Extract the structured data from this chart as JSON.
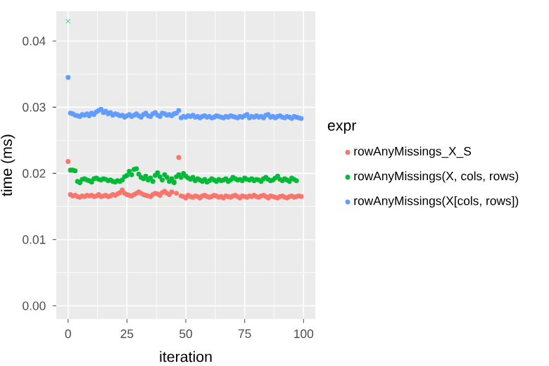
{
  "chart_data": {
    "type": "scatter",
    "xlabel": "iteration",
    "ylabel": "time (ms)",
    "legend_title": "expr",
    "x": [
      0,
      1,
      2,
      3,
      4,
      5,
      6,
      7,
      8,
      9,
      10,
      11,
      12,
      13,
      14,
      15,
      16,
      17,
      18,
      19,
      20,
      21,
      22,
      23,
      24,
      25,
      26,
      27,
      28,
      29,
      30,
      31,
      32,
      33,
      34,
      35,
      36,
      37,
      38,
      39,
      40,
      41,
      42,
      43,
      44,
      45,
      46,
      47,
      48,
      49,
      50,
      51,
      52,
      53,
      54,
      55,
      56,
      57,
      58,
      59,
      60,
      61,
      62,
      63,
      64,
      65,
      66,
      67,
      68,
      69,
      70,
      71,
      72,
      73,
      74,
      75,
      76,
      77,
      78,
      79,
      80,
      81,
      82,
      83,
      84,
      85,
      86,
      87,
      88,
      89,
      90,
      91,
      92,
      93,
      94,
      95,
      96,
      97,
      98,
      99
    ],
    "series": [
      {
        "name": "rowAnyMissings_X_S",
        "color": "#f8766d",
        "values": [
          0.0218,
          0.0168,
          0.0166,
          0.0167,
          0.0165,
          0.0164,
          0.0166,
          0.0165,
          0.0167,
          0.0166,
          0.0167,
          0.0165,
          0.0166,
          0.0168,
          0.0165,
          0.0166,
          0.0167,
          0.0165,
          0.0166,
          0.0168,
          0.0167,
          0.0169,
          0.0171,
          0.0175,
          0.017,
          0.0168,
          0.0167,
          0.0166,
          0.0168,
          0.017,
          0.0172,
          0.017,
          0.0168,
          0.0167,
          0.0166,
          0.0165,
          0.0168,
          0.017,
          0.0169,
          0.0167,
          0.0171,
          0.0173,
          0.017,
          0.0168,
          0.0172,
          0.0188,
          0.017,
          0.0224,
          0.0166,
          0.0165,
          0.0163,
          0.0167,
          0.0165,
          0.0164,
          0.0166,
          0.0165,
          0.0163,
          0.0166,
          0.0167,
          0.0165,
          0.0164,
          0.0165,
          0.0167,
          0.0166,
          0.0164,
          0.0165,
          0.0163,
          0.0166,
          0.0165,
          0.0164,
          0.0166,
          0.0167,
          0.0165,
          0.0163,
          0.0166,
          0.0165,
          0.0164,
          0.0166,
          0.0165,
          0.0167,
          0.0165,
          0.0164,
          0.0166,
          0.0167,
          0.0165,
          0.0163,
          0.0166,
          0.0165,
          0.0164,
          0.0163,
          0.0165,
          0.0166,
          0.0164,
          0.0163,
          0.0165,
          0.0166,
          0.0164,
          0.0165,
          0.0166,
          0.0165
        ]
      },
      {
        "name": "rowAnyMissings(X, cols, rows)",
        "color": "#00ba38",
        "values": [
          null,
          0.0205,
          0.0205,
          0.0204,
          0.0188,
          0.0186,
          0.0191,
          0.0192,
          0.019,
          0.0189,
          0.0187,
          0.0192,
          0.0193,
          0.0191,
          0.019,
          0.0192,
          0.0191,
          0.0189,
          0.019,
          0.0188,
          0.0187,
          0.0189,
          0.0188,
          0.019,
          0.0195,
          0.0197,
          0.0203,
          0.0198,
          0.0206,
          0.0207,
          0.0199,
          0.0194,
          0.0192,
          0.0196,
          0.019,
          0.0193,
          0.0188,
          0.0197,
          0.0201,
          0.0195,
          0.019,
          0.0198,
          0.0194,
          0.0188,
          0.0192,
          0.0186,
          0.0195,
          0.0198,
          0.0194,
          0.02,
          0.0196,
          0.0193,
          0.0191,
          0.0194,
          0.0189,
          0.0192,
          0.019,
          0.0188,
          0.0191,
          0.0187,
          0.0189,
          0.0192,
          0.019,
          0.0188,
          0.0191,
          0.0189,
          0.019,
          0.0192,
          0.0188,
          0.019,
          0.0194,
          0.0192,
          0.019,
          0.0191,
          0.0189,
          0.0193,
          0.0191,
          0.019,
          0.0192,
          0.0189,
          0.0191,
          0.019,
          0.0188,
          0.0192,
          0.0194,
          0.0191,
          0.0189,
          0.019,
          0.0193,
          0.0196,
          0.0191,
          0.0189,
          0.0192,
          0.019,
          0.0188,
          0.0193,
          0.0191,
          0.0189,
          null,
          null
        ]
      },
      {
        "name": "rowAnyMissings(X[cols, rows])",
        "color": "#619cff",
        "values": [
          0.0345,
          0.0291,
          0.029,
          0.0288,
          0.0287,
          0.0286,
          0.0289,
          0.0288,
          0.029,
          0.0287,
          0.0291,
          0.0289,
          0.0293,
          0.0295,
          0.0297,
          0.0292,
          0.0294,
          0.029,
          0.0292,
          0.0288,
          0.029,
          0.0289,
          0.0287,
          0.0288,
          0.0285,
          0.0287,
          0.0289,
          0.0286,
          0.0288,
          0.029,
          0.0287,
          0.0285,
          0.0289,
          0.0291,
          0.0287,
          0.0286,
          0.029,
          0.0292,
          0.0288,
          0.0286,
          0.0291,
          0.029,
          0.0288,
          0.0289,
          0.0287,
          0.029,
          0.0291,
          0.0295,
          0.0284,
          0.0286,
          0.0285,
          0.0287,
          0.0286,
          0.0288,
          0.0285,
          0.0286,
          0.0284,
          0.0286,
          0.0287,
          0.0285,
          0.0286,
          0.0284,
          0.0285,
          0.0287,
          0.0286,
          0.0285,
          0.0284,
          0.0286,
          0.0285,
          0.0287,
          0.0286,
          0.0285,
          0.0284,
          0.0286,
          0.0285,
          0.0287,
          0.0289,
          0.0284,
          0.0286,
          0.0285,
          0.0287,
          0.0285,
          0.0286,
          0.0284,
          0.0288,
          0.0289,
          0.0285,
          0.0286,
          0.0284,
          0.0286,
          0.0287,
          0.0285,
          0.0284,
          0.0286,
          0.0285,
          0.0283,
          0.0286,
          0.0285,
          0.0284,
          0.0283
        ]
      },
      {
        "color": "#00ba38",
        "marker": "cross",
        "x": [
          0
        ],
        "values": [
          0.043
        ]
      }
    ],
    "xlim": [
      -5,
      105
    ],
    "ylim": [
      -0.002,
      0.0445
    ],
    "xticks": [
      0,
      25,
      50,
      75,
      100
    ],
    "yticks": [
      {
        "value": 0,
        "label": "0.00"
      },
      {
        "value": 0.01,
        "label": "0.01"
      },
      {
        "value": 0.02,
        "label": "0.02"
      },
      {
        "value": 0.03,
        "label": "0.03"
      },
      {
        "value": 0.04,
        "label": "0.04"
      }
    ],
    "grid": true,
    "legend": "right",
    "marker": "circle"
  }
}
